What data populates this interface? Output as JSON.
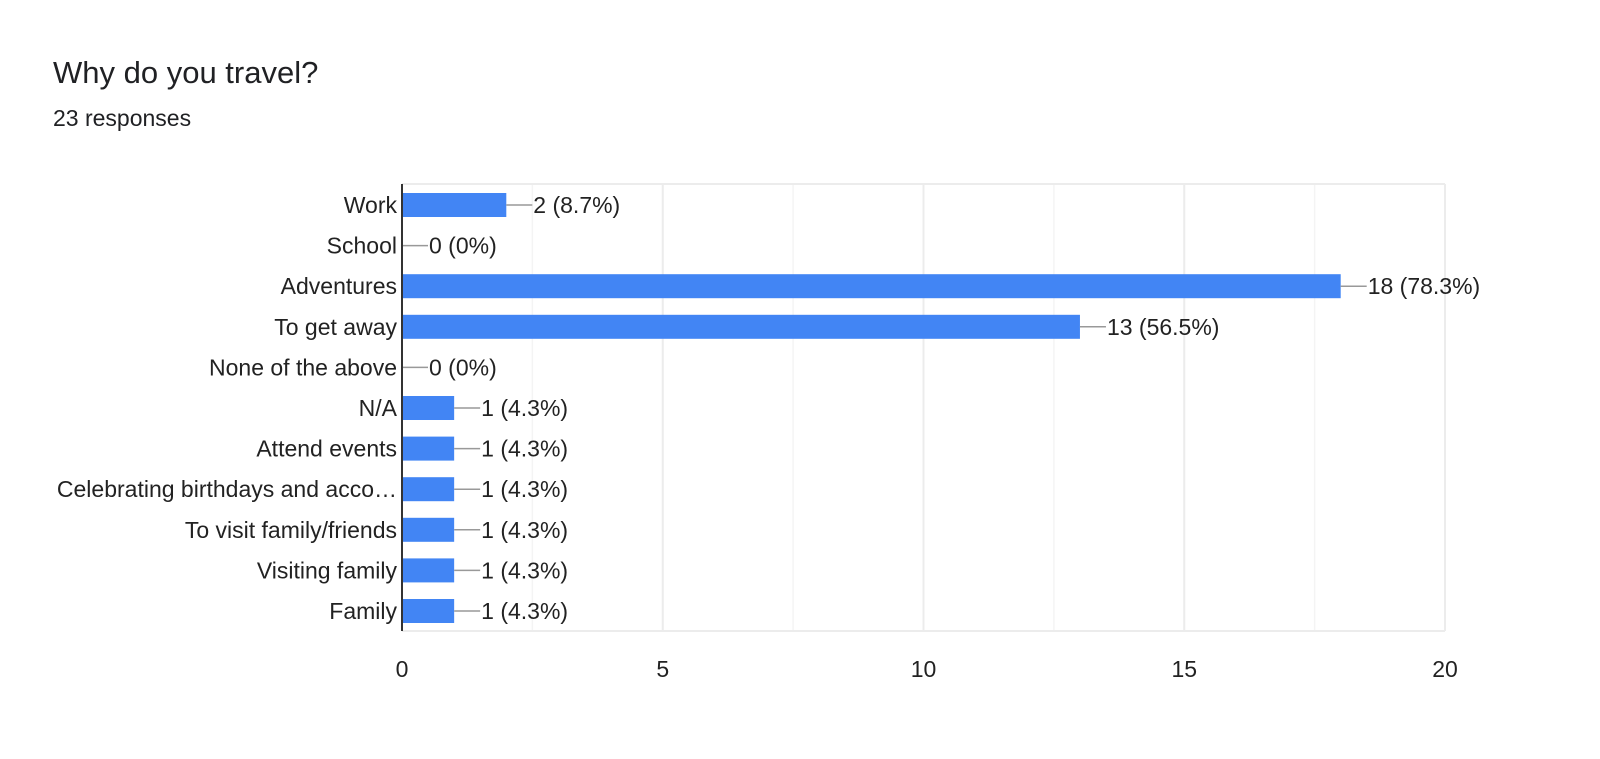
{
  "title": "Why do you travel?",
  "subtitle": "23 responses",
  "colors": {
    "bar": "#4285f4",
    "grid": "#ececec",
    "axis": "#333333",
    "connector": "#999999",
    "text": "#222222"
  },
  "chart_data": {
    "type": "bar",
    "orientation": "horizontal",
    "categories": [
      "Work",
      "School",
      "Adventures",
      "To get away",
      "None of the above",
      "N/A",
      "Attend events",
      "Celebrating birthdays and acco…",
      "To visit family/friends",
      "Visiting family",
      "Family"
    ],
    "values": [
      2,
      0,
      18,
      13,
      0,
      1,
      1,
      1,
      1,
      1,
      1
    ],
    "data_labels": [
      "2 (8.7%)",
      "0 (0%)",
      "18 (78.3%)",
      "13 (56.5%)",
      "0 (0%)",
      "1 (4.3%)",
      "1 (4.3%)",
      "1 (4.3%)",
      "1 (4.3%)",
      "1 (4.3%)",
      "1 (4.3%)"
    ],
    "xlim": [
      0,
      20
    ],
    "x_ticks": [
      0,
      5,
      10,
      15,
      20
    ],
    "x_tick_labels": [
      "0",
      "5",
      "10",
      "15",
      "20"
    ],
    "minor_gridlines": [
      2.5,
      7.5,
      12.5,
      17.5
    ],
    "grid": true,
    "legend": "none"
  }
}
